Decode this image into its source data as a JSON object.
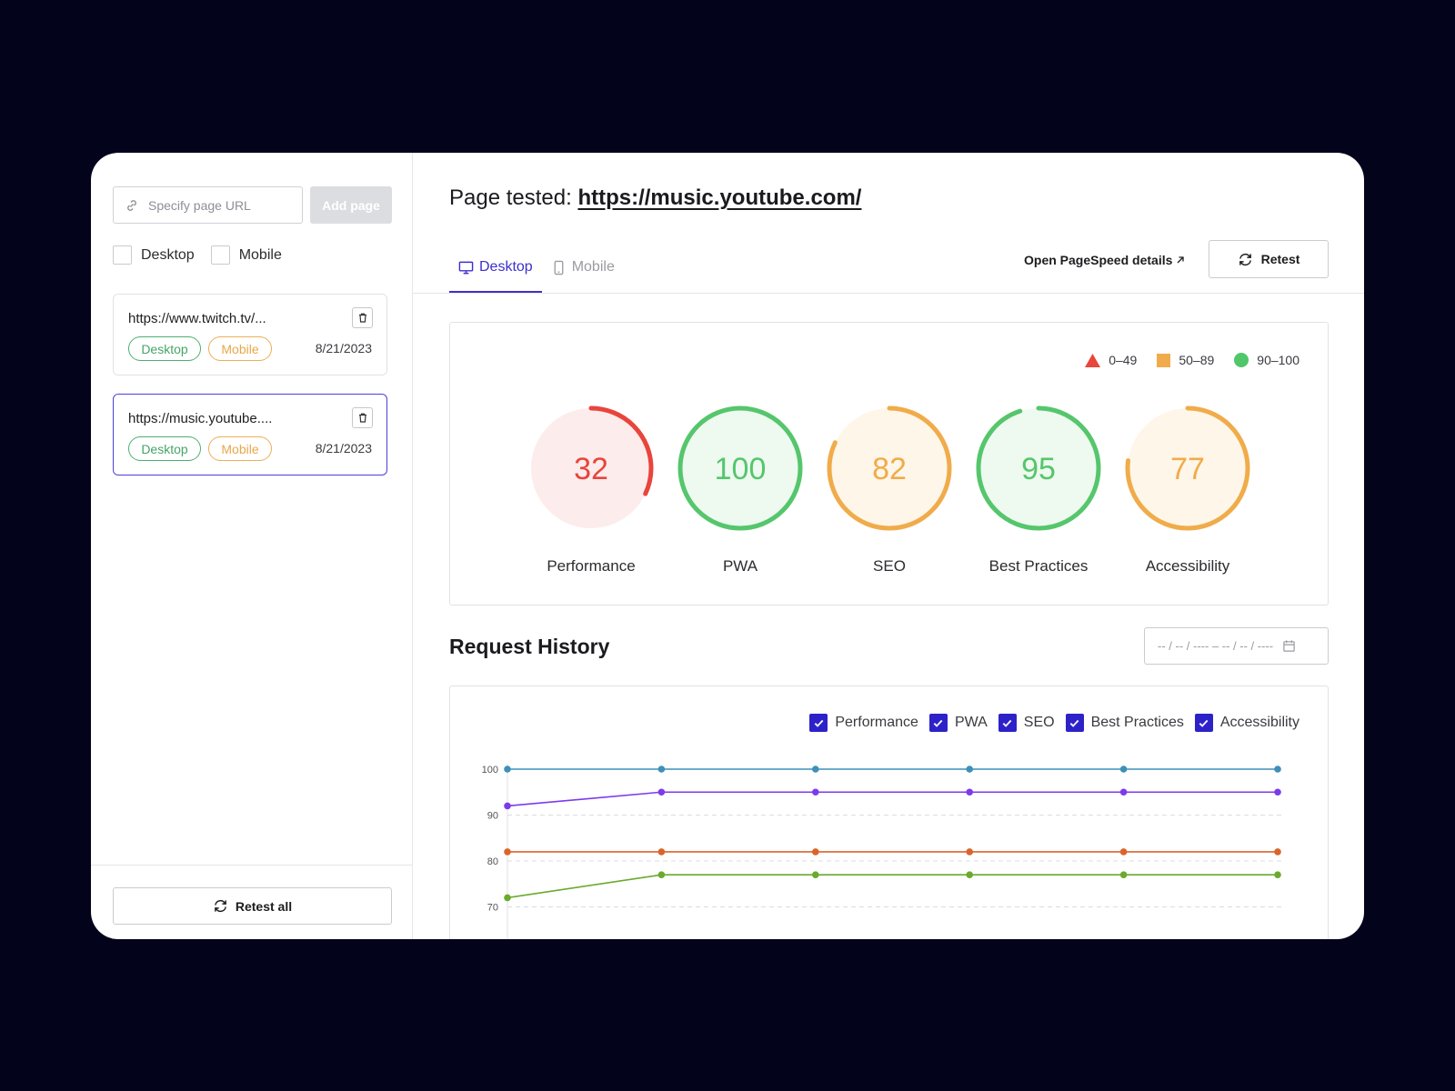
{
  "sidebar": {
    "url_input": {
      "placeholder": "Specify page URL",
      "value": ""
    },
    "add_page_label": "Add page",
    "checkbox_desktop_label": "Desktop",
    "checkbox_mobile_label": "Mobile",
    "pages": [
      {
        "url": "https://www.twitch.tv/...",
        "tag_desktop": "Desktop",
        "tag_mobile": "Mobile",
        "date": "8/21/2023",
        "active": false
      },
      {
        "url": "https://music.youtube....",
        "tag_desktop": "Desktop",
        "tag_mobile": "Mobile",
        "date": "8/21/2023",
        "active": true
      }
    ],
    "retest_all_label": "Retest all"
  },
  "header": {
    "page_tested_label": "Page tested:",
    "page_tested_url": "https://music.youtube.com/",
    "tabs": [
      {
        "label": "Desktop",
        "active": true,
        "icon": "monitor-icon"
      },
      {
        "label": "Mobile",
        "active": false,
        "icon": "smartphone-icon"
      }
    ],
    "open_pagespeed_label": "Open PageSpeed details",
    "retest_label": "Retest"
  },
  "scores": {
    "legend": [
      {
        "label": "0–49",
        "shape": "triangle",
        "color": "#e8453c"
      },
      {
        "label": "50–89",
        "shape": "square",
        "color": "#f0ac4a"
      },
      {
        "label": "90–100",
        "shape": "circle",
        "color": "#4fc76a"
      }
    ],
    "gauges": [
      {
        "label": "Performance",
        "value": 32,
        "color": "#e8453c",
        "bg": "#fdecec"
      },
      {
        "label": "PWA",
        "value": 100,
        "color": "#55c66c",
        "bg": "#eef9f0"
      },
      {
        "label": "SEO",
        "value": 82,
        "color": "#f0ac4a",
        "bg": "#fff6ea"
      },
      {
        "label": "Best Practices",
        "value": 95,
        "color": "#55c66c",
        "bg": "#eef9f0"
      },
      {
        "label": "Accessibility",
        "value": 77,
        "color": "#f0ac4a",
        "bg": "#fff6ea"
      }
    ]
  },
  "history": {
    "title": "Request History",
    "date_range_placeholder": "-- / -- / ---- – -- / -- / ----",
    "legend": [
      "Performance",
      "PWA",
      "SEO",
      "Best Practices",
      "Accessibility"
    ]
  },
  "chart_data": {
    "type": "line",
    "x": [
      1,
      2,
      3,
      4,
      5,
      6
    ],
    "yticks": [
      100,
      90,
      80,
      70
    ],
    "ylim": [
      67,
      100
    ],
    "grid": true,
    "series": [
      {
        "color": "#3f8fb8",
        "values": [
          100,
          100,
          100,
          100,
          100,
          100
        ]
      },
      {
        "color": "#7c3aed",
        "values": [
          92,
          95,
          95,
          95,
          95,
          95
        ]
      },
      {
        "color": "#d9652b",
        "values": [
          82,
          82,
          82,
          82,
          82,
          82
        ]
      },
      {
        "color": "#6aaa2e",
        "values": [
          72,
          77,
          77,
          77,
          77,
          77
        ]
      }
    ]
  }
}
